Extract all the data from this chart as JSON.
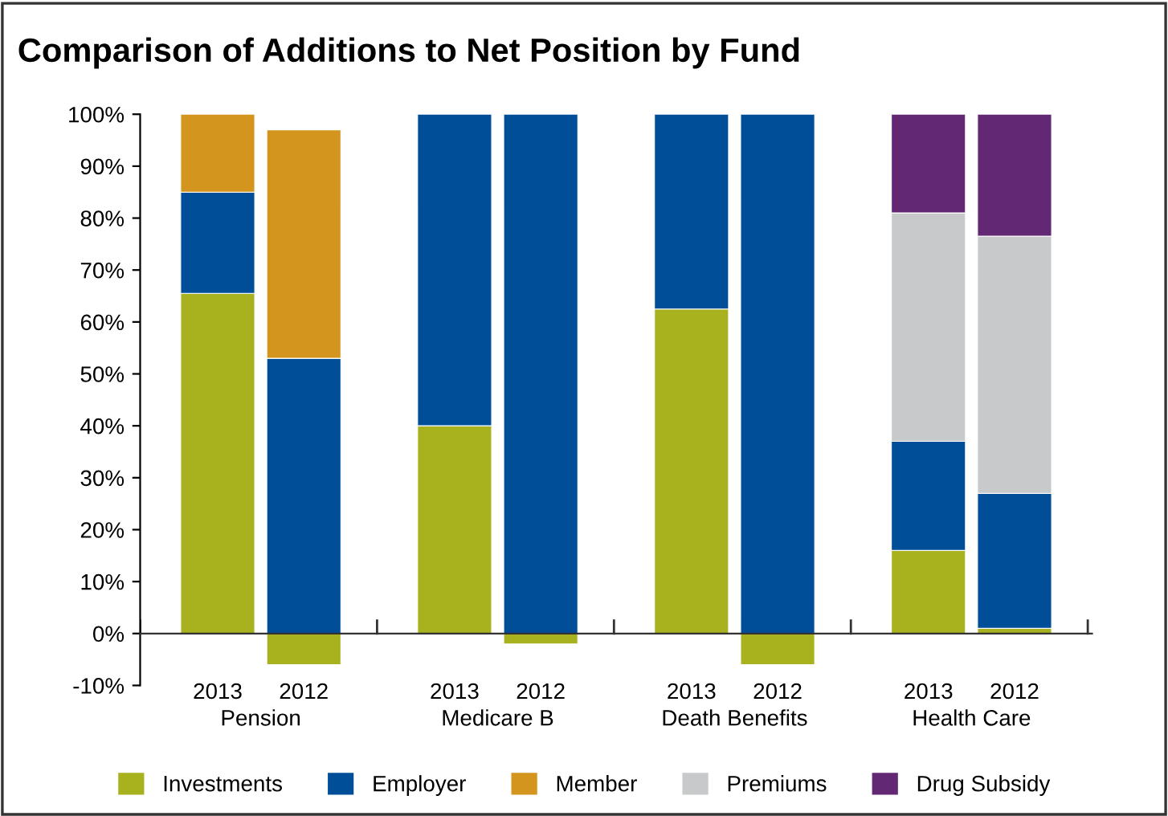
{
  "chart_data": {
    "type": "bar",
    "title": "Comparison of Additions to Net Position by Fund",
    "stacked": true,
    "categories": [
      "2013",
      "2012",
      "2013",
      "2012",
      "2013",
      "2012",
      "2013",
      "2012"
    ],
    "annotations": [
      "Pension",
      "Medicare B",
      "Death Benefits",
      "Health Care"
    ],
    "series": [
      {
        "name": "Investments",
        "color": "#a8b21f",
        "values": [
          65.5,
          -6,
          40,
          -2,
          62.5,
          -6,
          16,
          1
        ]
      },
      {
        "name": "Employer",
        "color": "#004e98",
        "values": [
          19.5,
          53,
          60,
          100,
          37.5,
          100,
          21,
          26
        ]
      },
      {
        "name": "Member",
        "color": "#d4951f",
        "values": [
          15,
          44,
          null,
          null,
          null,
          null,
          null,
          null
        ]
      },
      {
        "name": "Premiums",
        "color": "#c8c9cb",
        "values": [
          null,
          null,
          null,
          null,
          null,
          null,
          44,
          49.5
        ]
      },
      {
        "name": "Drug Subsidy",
        "color": "#632873",
        "values": [
          null,
          null,
          null,
          null,
          null,
          null,
          19,
          23.5
        ]
      }
    ],
    "ylim": [
      -10,
      100
    ],
    "yticks": [
      {
        "value": -10,
        "label": "-10%"
      },
      {
        "value": 0,
        "label": "0%"
      },
      {
        "value": 10,
        "label": "10%"
      },
      {
        "value": 20,
        "label": "20%"
      },
      {
        "value": 30,
        "label": "30%"
      },
      {
        "value": 40,
        "label": "40%"
      },
      {
        "value": 50,
        "label": "50%"
      },
      {
        "value": 60,
        "label": "60%"
      },
      {
        "value": 70,
        "label": "70%"
      },
      {
        "value": 80,
        "label": "80%"
      },
      {
        "value": 90,
        "label": "90%"
      },
      {
        "value": 100,
        "label": "100%"
      }
    ],
    "grid": false,
    "legend": "bottom"
  }
}
